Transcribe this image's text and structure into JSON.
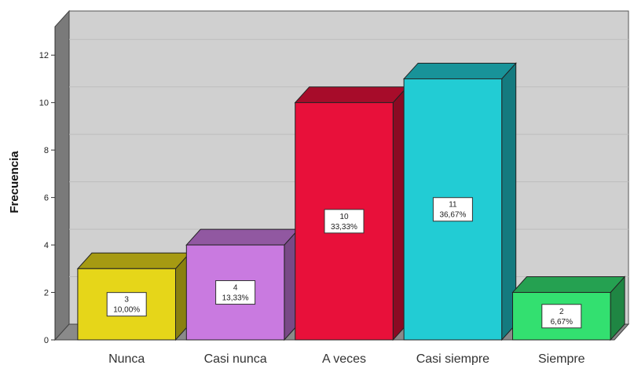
{
  "chart_data": {
    "type": "bar",
    "style": "3d",
    "categories": [
      "Nunca",
      "Casi nunca",
      "A veces",
      "Casi siempre",
      "Siempre"
    ],
    "values": [
      3,
      4,
      10,
      11,
      2
    ],
    "data_labels": [
      [
        "3",
        "10,00%"
      ],
      [
        "4",
        "13,33%"
      ],
      [
        "10",
        "33,33%"
      ],
      [
        "11",
        "36,67%"
      ],
      [
        "2",
        "6,67%"
      ]
    ],
    "colors": [
      "#e6d619",
      "#c97ae0",
      "#e8103a",
      "#22ccd4",
      "#33e070"
    ],
    "title": "",
    "xlabel": "",
    "ylabel": "Frecuencia",
    "ylim": [
      0,
      13
    ],
    "yticks": [
      0,
      2,
      4,
      6,
      8,
      10,
      12
    ],
    "grid": true,
    "legend": "none",
    "plot_background": "#d0d0d0"
  }
}
